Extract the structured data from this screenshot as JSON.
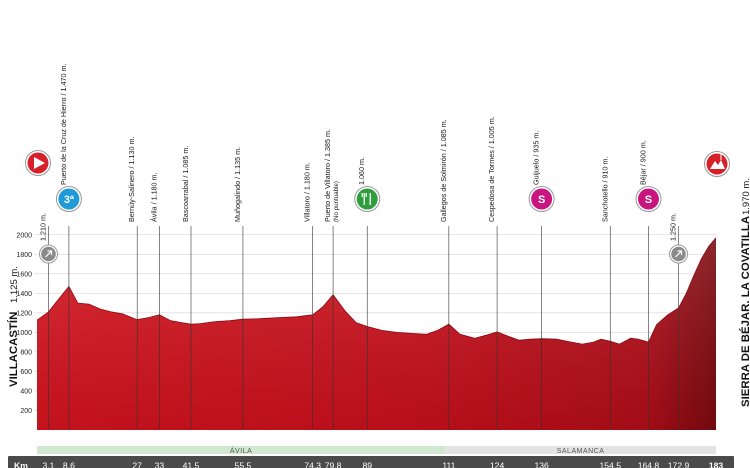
{
  "chart_data": {
    "type": "area",
    "y_unit": "m",
    "ylim": [
      0,
      2100
    ],
    "xlim": [
      0,
      183
    ],
    "y_ticks": [
      200,
      400,
      600,
      800,
      1000,
      1200,
      1400,
      1600,
      1800,
      2000
    ],
    "x_ticks": [
      0,
      10,
      20,
      30,
      40,
      50,
      60,
      70,
      80,
      90,
      100,
      110,
      120,
      130,
      140,
      150,
      160,
      170,
      180
    ],
    "profile": {
      "x": [
        0,
        3.1,
        6,
        8.6,
        11,
        14,
        17,
        20,
        23,
        27,
        30,
        33,
        36,
        39,
        41.5,
        44,
        48,
        52,
        55.5,
        60,
        65,
        70,
        74.3,
        77,
        79.8,
        83,
        86,
        89,
        93,
        97,
        101,
        105,
        108,
        111,
        114,
        118,
        121,
        124,
        127,
        130,
        133,
        136,
        140,
        144,
        147,
        150,
        152,
        154.5,
        157,
        160,
        162,
        164.8,
        167,
        170,
        172.9,
        175,
        177,
        179,
        181,
        183
      ],
      "y": [
        1125,
        1210,
        1350,
        1470,
        1300,
        1290,
        1240,
        1210,
        1190,
        1130,
        1150,
        1180,
        1120,
        1100,
        1085,
        1090,
        1110,
        1120,
        1135,
        1140,
        1150,
        1160,
        1180,
        1260,
        1385,
        1220,
        1100,
        1060,
        1020,
        1000,
        990,
        980,
        1020,
        1085,
        980,
        940,
        970,
        1005,
        960,
        920,
        930,
        935,
        930,
        900,
        880,
        900,
        930,
        910,
        880,
        940,
        930,
        900,
        1080,
        1180,
        1250,
        1400,
        1580,
        1750,
        1880,
        1970
      ]
    },
    "km_markers": [
      "3,1",
      "8,6",
      "27",
      "33",
      "41,5",
      "55,5",
      "74,3",
      "79,8",
      "89",
      "111",
      "124",
      "136",
      "154,5",
      "164,8",
      "172,9",
      "183"
    ],
    "start": {
      "name": "VILLACASTÍN",
      "altitude": "1.125 m."
    },
    "finish": {
      "name": "SIERRA DE BÉJAR. LA COVATILLA",
      "altitude": "1.970 m."
    },
    "points": [
      {
        "km": 3.1,
        "name": "1.210 m.",
        "icon": "sprint-icon"
      },
      {
        "km": 8.6,
        "name": "Puerto de la Cruz de Hierro / 1.470 m.",
        "icon": "climb-category-3-icon",
        "icon_text": "3ª"
      },
      {
        "km": 27,
        "name": "Bernúy-Salinero / 1.130 m.",
        "icon": ""
      },
      {
        "km": 33,
        "name": "Ávila / 1.180 m.",
        "icon": ""
      },
      {
        "km": 41.5,
        "name": "Bascoarrabal / 1.085 m.",
        "icon": ""
      },
      {
        "km": 55.5,
        "name": "Muñogalindo / 1.135 m.",
        "icon": ""
      },
      {
        "km": 74.3,
        "name": "Villatoro / 1.180 m.",
        "icon": ""
      },
      {
        "km": 79.8,
        "name": "Puerto de Villatoro / 1.385 m.",
        "subname": "(No puntuable)",
        "icon": ""
      },
      {
        "km": 89,
        "name": "1.060 m.",
        "icon": "feed-zone-icon"
      },
      {
        "km": 111,
        "name": "Gallegos de Solmirón / 1.085 m.",
        "icon": ""
      },
      {
        "km": 124,
        "name": "Cespedosa de Tormes / 1.005 m.",
        "icon": ""
      },
      {
        "km": 136,
        "name": "Guijuelo / 935 m.",
        "icon": "sprint-s-icon",
        "icon_text": "S"
      },
      {
        "km": 154.5,
        "name": "Sanchotello / 910 m.",
        "icon": ""
      },
      {
        "km": 164.8,
        "name": "Béjar / 900 m.",
        "icon": "sprint-s-icon",
        "icon_text": "S"
      },
      {
        "km": 172.9,
        "name": "1.250 m.",
        "icon": "sprint-icon"
      }
    ],
    "regions": [
      {
        "name": "ÁVILA",
        "from": 0,
        "to": 110,
        "color": "#cfe8cf"
      },
      {
        "name": "SALAMANCA",
        "from": 110,
        "to": 183,
        "color": "#e3e3e3"
      }
    ],
    "km_label": "Km",
    "colors": {
      "fill_main": "#c8101c",
      "fill_dark": "#7a0a10",
      "fill_light": "#e0303a",
      "km_bar": "#4a4a4a",
      "icon_green": "#2f9d3c",
      "icon_blue": "#1f9ad6",
      "icon_magenta": "#c8157f",
      "icon_red": "#d6202a"
    }
  }
}
